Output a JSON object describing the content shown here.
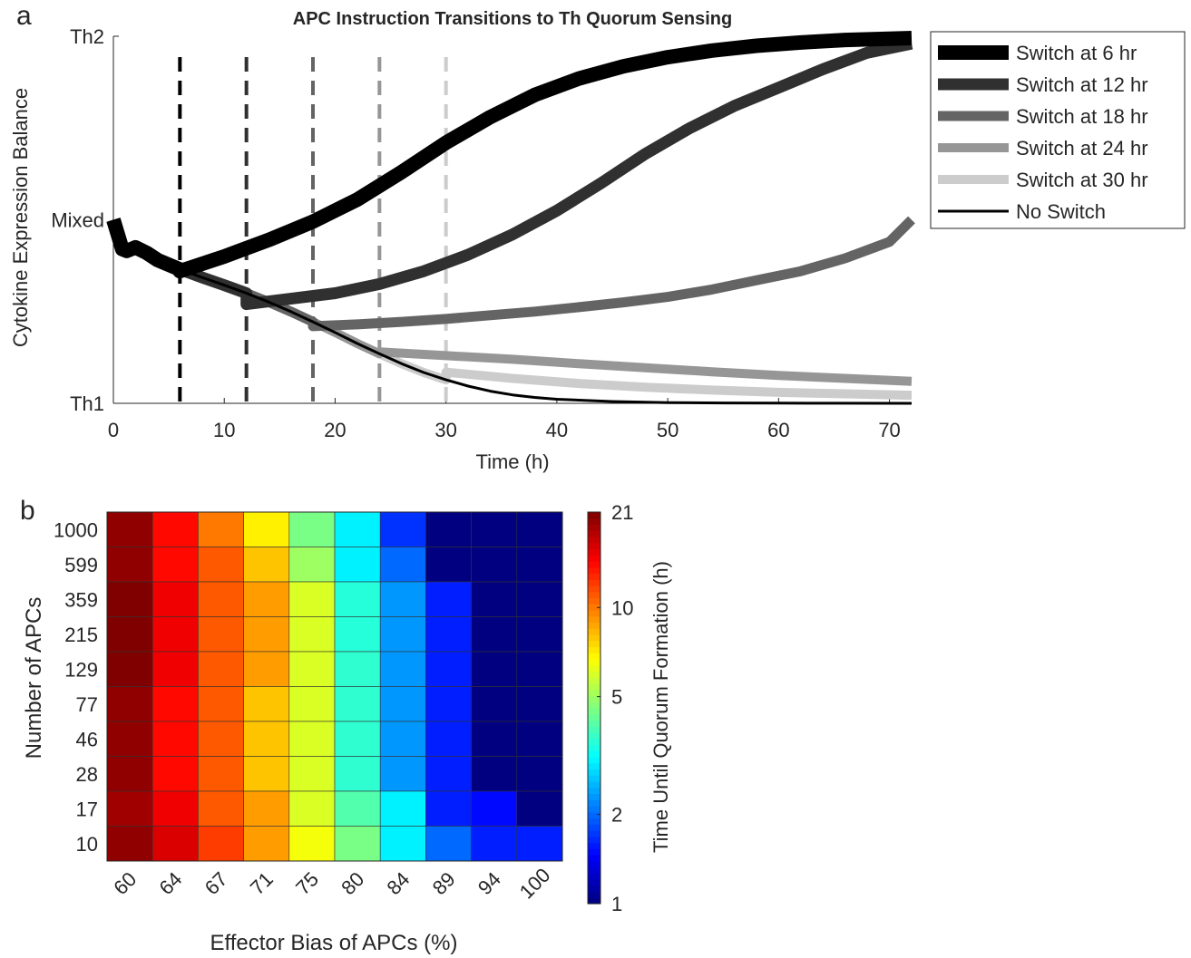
{
  "chart_data": [
    {
      "panel_label": "a",
      "type": "line",
      "title": "APC Instruction Transitions to Th Quorum Sensing",
      "xlabel": "Time (h)",
      "ylabel": "Cytokine Expression Balance",
      "xlim": [
        0,
        72
      ],
      "ylim": [
        0,
        1
      ],
      "xticks": [
        0,
        10,
        20,
        30,
        40,
        50,
        60,
        70
      ],
      "yticks": [
        {
          "value": 0,
          "label": "Th1"
        },
        {
          "value": 0.5,
          "label": "Mixed"
        },
        {
          "value": 1,
          "label": "Th2"
        }
      ],
      "legend_position": "outside-top-right",
      "base_curve": {
        "x": [
          0,
          0.4,
          0.8,
          1.2,
          1.6,
          2,
          3,
          4,
          6,
          8,
          10,
          12,
          14,
          16,
          18,
          20,
          22,
          24,
          26,
          28,
          30,
          32,
          34,
          36,
          38,
          40,
          45,
          50,
          55,
          60,
          65,
          72
        ],
        "y": [
          0.5,
          0.46,
          0.42,
          0.415,
          0.42,
          0.425,
          0.41,
          0.39,
          0.365,
          0.343,
          0.322,
          0.3,
          0.276,
          0.25,
          0.222,
          0.193,
          0.163,
          0.135,
          0.108,
          0.084,
          0.064,
          0.047,
          0.033,
          0.023,
          0.016,
          0.011,
          0.005,
          0.002,
          0.001,
          0.0005,
          0.0002,
          0.0001
        ]
      },
      "series": [
        {
          "name": "Switch at 6 hr",
          "switch": 6,
          "color": "#000000",
          "width": 16,
          "x": [
            6,
            10,
            14,
            18,
            22,
            26,
            30,
            34,
            38,
            42,
            46,
            50,
            54,
            58,
            62,
            66,
            72
          ],
          "y": [
            0.36,
            0.4,
            0.445,
            0.495,
            0.555,
            0.63,
            0.71,
            0.78,
            0.84,
            0.885,
            0.918,
            0.943,
            0.961,
            0.974,
            0.983,
            0.99,
            0.995
          ]
        },
        {
          "name": "Switch at 12 hr",
          "switch": 12,
          "color": "#303030",
          "width": 13,
          "x": [
            12,
            16,
            20,
            24,
            28,
            32,
            36,
            40,
            44,
            48,
            52,
            56,
            60,
            64,
            68,
            72
          ],
          "y": [
            0.27,
            0.285,
            0.3,
            0.325,
            0.36,
            0.405,
            0.46,
            0.525,
            0.6,
            0.68,
            0.75,
            0.81,
            0.86,
            0.91,
            0.955,
            0.98
          ]
        },
        {
          "name": "Switch at 18 hr",
          "switch": 18,
          "color": "#646464",
          "width": 11,
          "x": [
            18,
            22,
            26,
            30,
            34,
            38,
            42,
            46,
            50,
            54,
            58,
            62,
            66,
            70,
            72
          ],
          "y": [
            0.21,
            0.215,
            0.222,
            0.23,
            0.24,
            0.25,
            0.262,
            0.275,
            0.29,
            0.31,
            0.335,
            0.36,
            0.395,
            0.44,
            0.5
          ]
        },
        {
          "name": "Switch at 24 hr",
          "switch": 24,
          "color": "#969696",
          "width": 10,
          "x": [
            24,
            30,
            36,
            42,
            48,
            54,
            60,
            66,
            72
          ],
          "y": [
            0.14,
            0.13,
            0.12,
            0.108,
            0.097,
            0.086,
            0.076,
            0.068,
            0.06
          ]
        },
        {
          "name": "Switch at 30 hr",
          "switch": 30,
          "color": "#cccccc",
          "width": 10,
          "x": [
            30,
            36,
            42,
            48,
            54,
            60,
            66,
            72
          ],
          "y": [
            0.085,
            0.068,
            0.054,
            0.044,
            0.036,
            0.03,
            0.026,
            0.022
          ]
        },
        {
          "name": "No Switch",
          "switch": null,
          "color": "#000000",
          "width": 3,
          "x": [],
          "y": []
        }
      ]
    },
    {
      "panel_label": "b",
      "type": "heatmap",
      "xlabel": "Effector Bias of APCs (%)",
      "ylabel": "Number of APCs",
      "colorbar_label": "Time Until Quorum Formation (h)",
      "colorbar_scale": "log",
      "colorbar_range": [
        1,
        21
      ],
      "colorbar_ticks": [
        1,
        2,
        5,
        10,
        21
      ],
      "colorbar_tick_labels": [
        "1",
        "2",
        "5",
        "10",
        "21"
      ],
      "colormap": "jet",
      "x_categories": [
        "60",
        "64",
        "67",
        "71",
        "75",
        "80",
        "84",
        "89",
        "94",
        "100"
      ],
      "y_categories": [
        "1000",
        "599",
        "359",
        "215",
        "129",
        "77",
        "46",
        "28",
        "17",
        "10"
      ],
      "values": [
        [
          20,
          14,
          10,
          7,
          4.5,
          3,
          1.7,
          1,
          1,
          1
        ],
        [
          20,
          14,
          11,
          8,
          5,
          3,
          2,
          1,
          1,
          1
        ],
        [
          21,
          15,
          11,
          9,
          6,
          3.5,
          2.3,
          1.6,
          1,
          1
        ],
        [
          21,
          15,
          11,
          9,
          6,
          3.5,
          2.3,
          1.6,
          1,
          1
        ],
        [
          21,
          15,
          11,
          9,
          6,
          3.6,
          2.3,
          1.6,
          1,
          1
        ],
        [
          20,
          14,
          11,
          8,
          6,
          3.6,
          2.3,
          1.6,
          1,
          1
        ],
        [
          20,
          14,
          11,
          8,
          6,
          3.6,
          2.3,
          1.6,
          1,
          1
        ],
        [
          20,
          14,
          11,
          8,
          6,
          3.6,
          2.3,
          1.6,
          1,
          1
        ],
        [
          19,
          15,
          11,
          9,
          6,
          4,
          3,
          1.6,
          1.5,
          1
        ],
        [
          20,
          16,
          12,
          9,
          6.5,
          4.5,
          3,
          2,
          1.6,
          1.6
        ]
      ]
    }
  ]
}
